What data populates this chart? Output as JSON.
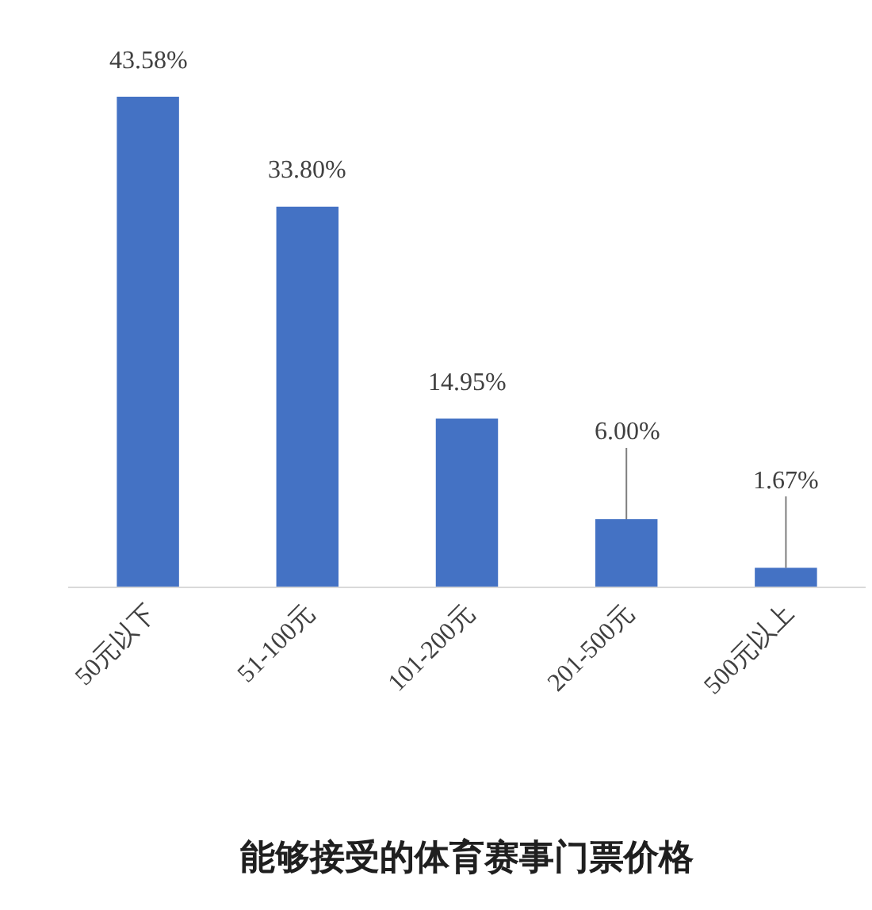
{
  "chart_data": {
    "type": "bar",
    "title": "能够接受的体育赛事门票价格",
    "categories": [
      "50元以下",
      "51-100元",
      "101-200元",
      "201-500元",
      "500元以上"
    ],
    "values": [
      43.58,
      33.8,
      14.95,
      6.0,
      1.67
    ],
    "color": "#4472c4",
    "value_labels": [
      "43.58%",
      "33.80%",
      "14.95%",
      "6.00%",
      "1.67%"
    ]
  }
}
